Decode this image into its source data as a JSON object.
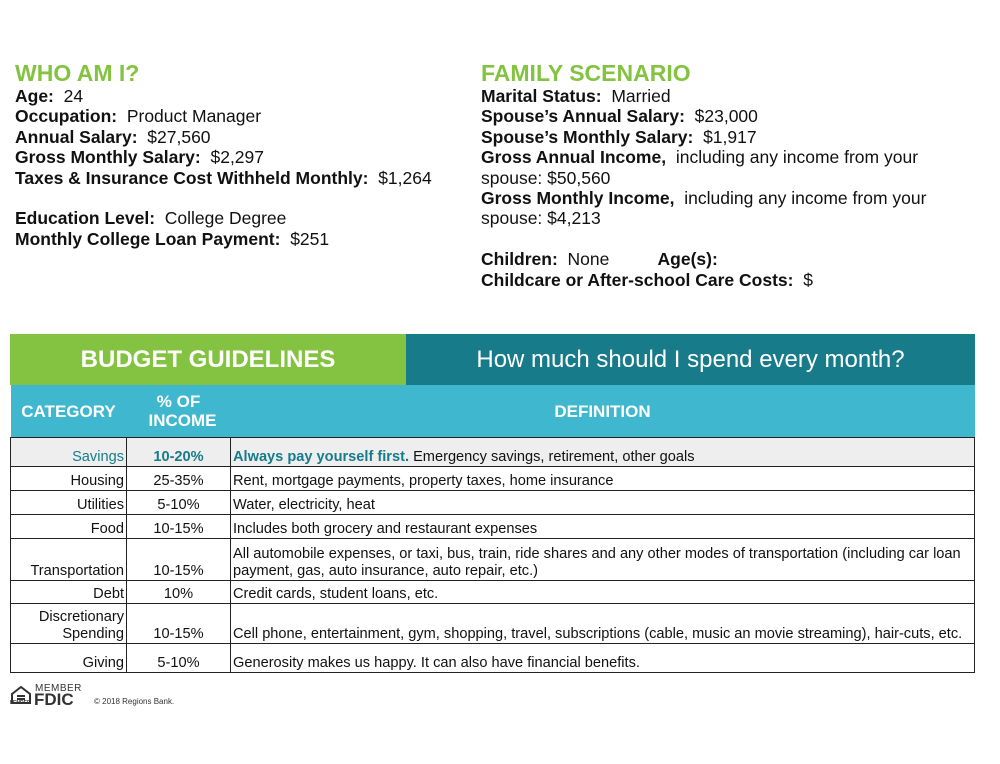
{
  "who_am_i": {
    "title": "WHO AM I?",
    "items": [
      {
        "label": "Age:",
        "value": "24"
      },
      {
        "label": "Occupation:",
        "value": "Product Manager"
      },
      {
        "label": "Annual Salary:",
        "value": "$27,560"
      },
      {
        "label": "Gross Monthly Salary:",
        "value": "$2,297"
      },
      {
        "label": "Taxes & Insurance Cost Withheld Monthly:",
        "value": "$1,264"
      }
    ],
    "items2": [
      {
        "label": "Education Level:",
        "value": "College Degree"
      },
      {
        "label": "Monthly College Loan Payment:",
        "value": "$251"
      }
    ]
  },
  "family_scenario": {
    "title": "FAMILY SCENARIO",
    "items": [
      {
        "label": "Marital Status:",
        "value": "Married"
      },
      {
        "label": "Spouse’s Annual Salary:",
        "value": "$23,000"
      },
      {
        "label": "Spouse’s Monthly Salary:",
        "value": "$1,917"
      },
      {
        "label": "Gross Annual Income,",
        "value": "including any income from your spouse:  $50,560"
      },
      {
        "label": "Gross Monthly Income,",
        "value": "including any income from your spouse: $4,213"
      }
    ],
    "children_label": "Children:",
    "children_value": "None",
    "ages_label": "Age(s):",
    "childcare_label": "Childcare or After-school Care Costs:",
    "childcare_value": "$"
  },
  "table": {
    "title": "BUDGET GUIDELINES",
    "subtitle": "How much should I spend every month?",
    "columns": [
      "CATEGORY",
      "% OF INCOME",
      "DEFINITION"
    ],
    "rows": [
      {
        "category": "Savings",
        "percent": "10-20%",
        "definition_bold": "Always pay yourself first.",
        "definition": "Emergency savings, retirement, other goals"
      },
      {
        "category": "Housing",
        "percent": "25-35%",
        "definition": "Rent, mortgage payments, property taxes, home insurance"
      },
      {
        "category": "Utilities",
        "percent": "5-10%",
        "definition": "Water, electricity, heat"
      },
      {
        "category": "Food",
        "percent": "10-15%",
        "definition": "Includes both grocery and restaurant expenses"
      },
      {
        "category": "Transportation",
        "percent": "10-15%",
        "definition": "All automobile expenses, or taxi, bus, train, ride shares and any other modes of transportation (including car loan payment, gas, auto insurance, auto repair, etc.)"
      },
      {
        "category": "Debt",
        "percent": "10%",
        "definition": "Credit cards, student loans, etc."
      },
      {
        "category": "Discretionary Spending",
        "percent": "10-15%",
        "definition": "Cell phone, entertainment, gym, shopping, travel, subscriptions (cable, music an movie streaming), hair-cuts, etc."
      },
      {
        "category": "Giving",
        "percent": "5-10%",
        "definition": "Generosity makes us happy. It can also have financial benefits."
      }
    ]
  },
  "footer": {
    "member": "MEMBER",
    "fdic": "FDIC",
    "lender": "LENDER",
    "copyright": "© 2018 Regions Bank."
  }
}
